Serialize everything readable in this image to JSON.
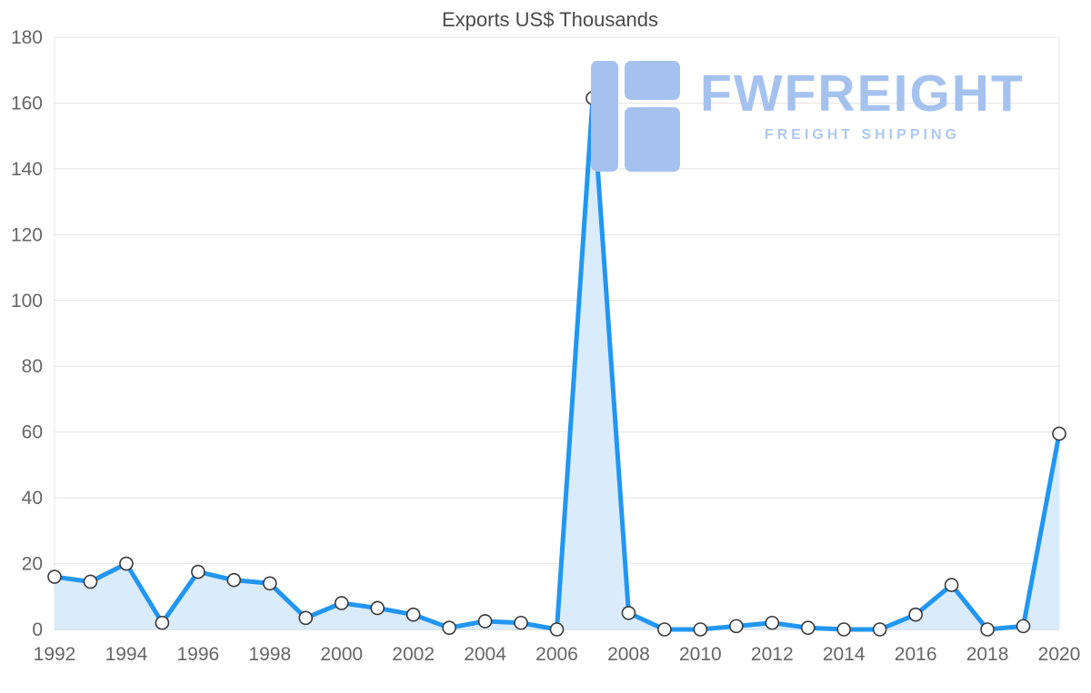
{
  "chart_data": {
    "type": "line",
    "title": "Exports US$ Thousands",
    "x": [
      1992,
      1993,
      1994,
      1995,
      1996,
      1997,
      1998,
      1999,
      2000,
      2001,
      2002,
      2003,
      2004,
      2005,
      2006,
      2007,
      2008,
      2009,
      2010,
      2011,
      2012,
      2013,
      2014,
      2015,
      2016,
      2017,
      2018,
      2019,
      2020
    ],
    "values": [
      16,
      14.5,
      20,
      2,
      17.5,
      15,
      14,
      3.5,
      8,
      6.5,
      4.5,
      0.5,
      2.5,
      2,
      0,
      161.5,
      5,
      0,
      0,
      1,
      2,
      0.5,
      0,
      0,
      4.5,
      13.5,
      0,
      1,
      59.5
    ],
    "xlabel": "",
    "ylabel": "",
    "ylim": [
      0,
      180
    ],
    "ytick_step": 20,
    "xtick_step": 2,
    "grid": "horizontal",
    "legend": "none",
    "line_color": "#2196f3",
    "area_color": "#daebfc",
    "marker_fill": "#ffffff",
    "marker_stroke": "#3a3a3a",
    "grid_color": "#e4e4e4",
    "axis_line_color": "#c6c6c6",
    "tick_label_color": "#666666"
  },
  "logo": {
    "text": "FWFREIGHT",
    "subtitle": "FREIGHT SHIPPING",
    "color": "#a5c2ef"
  }
}
